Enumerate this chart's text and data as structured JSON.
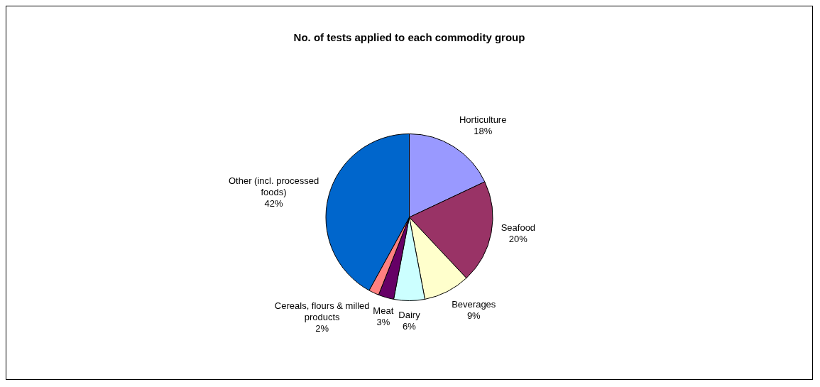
{
  "chart_data": {
    "type": "pie",
    "title": "No. of tests applied to each commodity group",
    "categories": [
      "Horticulture",
      "Seafood",
      "Beverages",
      "Dairy",
      "Meat",
      "Cereals, flours & milled products",
      "Other (incl. processed foods)"
    ],
    "values": [
      18,
      20,
      9,
      6,
      3,
      2,
      42
    ],
    "colors": [
      "#9999ff",
      "#993366",
      "#ffffcc",
      "#ccffff",
      "#660066",
      "#ff8080",
      "#0066cc"
    ],
    "value_labels": [
      "18%",
      "20%",
      "9%",
      "6%",
      "3%",
      "2%",
      "42%"
    ],
    "legend": false
  }
}
